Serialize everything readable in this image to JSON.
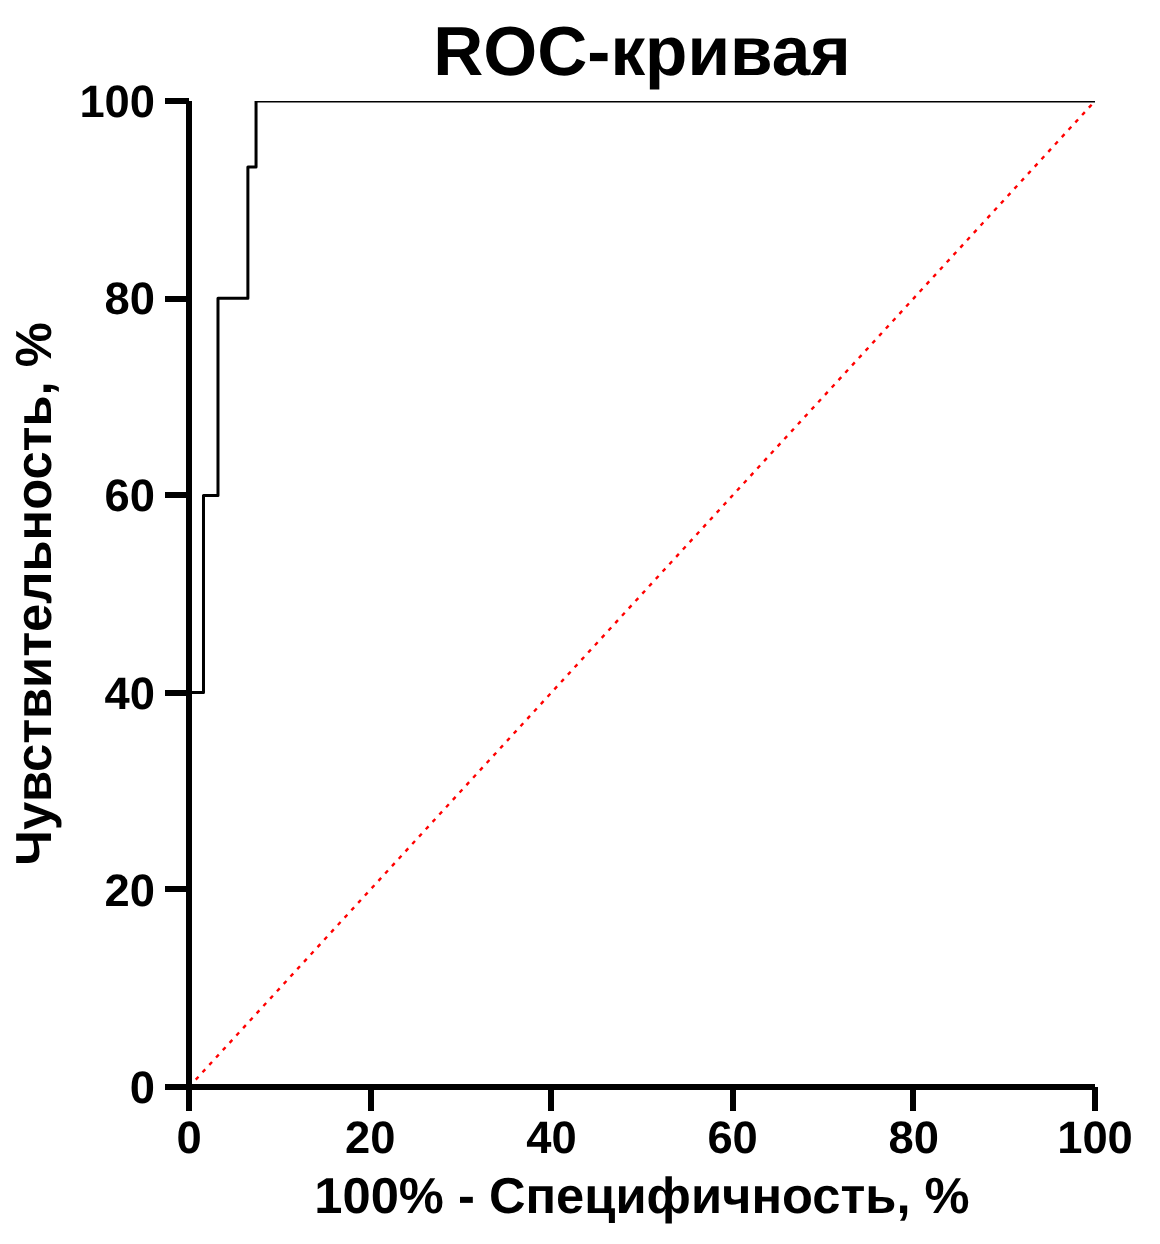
{
  "chart_data": {
    "type": "line",
    "title": "ROC-кривая",
    "xlabel": "100% - Специфичность, %",
    "ylabel": "Чувствительность, %",
    "xlim": [
      0,
      100
    ],
    "ylim": [
      0,
      100
    ],
    "xticks": [
      0,
      20,
      40,
      60,
      80,
      100
    ],
    "yticks": [
      0,
      20,
      40,
      60,
      80,
      100
    ],
    "grid": false,
    "marker": "none",
    "series": [
      {
        "color": "#000000",
        "line_style": "solid",
        "x": [
          0,
          0,
          1.6,
          1.6,
          3.2,
          3.2,
          6.5,
          6.5,
          7.4,
          7.4,
          100
        ],
        "values": [
          0,
          40,
          40,
          60,
          60,
          80,
          80,
          93.3,
          93.3,
          100,
          100
        ]
      },
      {
        "color": "#ff0000",
        "line_style": "dotted",
        "x": [
          0,
          100
        ],
        "values": [
          0,
          100
        ]
      }
    ]
  }
}
